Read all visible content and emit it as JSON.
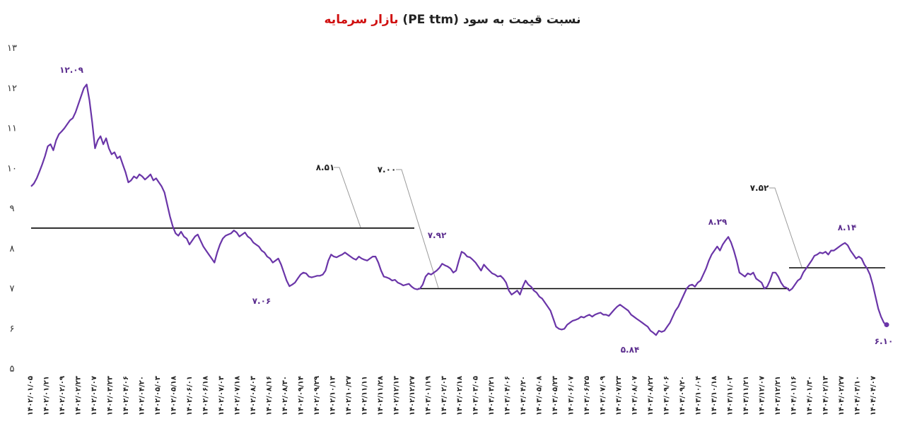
{
  "title": {
    "main": "نسبت قیمت به سود (PE ttm)",
    "highlight": "بازار سرمایه"
  },
  "colors": {
    "line": "#6a35a8",
    "label": "#5b2d8e",
    "level_line": "#000000",
    "leader": "#9a9a9a",
    "highlight": "#d01010"
  },
  "chart_data": {
    "type": "line",
    "ylim": [
      5,
      13
    ],
    "y_ticks": [
      "۵",
      "۶",
      "۷",
      "۸",
      "۹",
      "۱۰",
      "۱۱",
      "۱۲",
      "۱۳"
    ],
    "x_tick_labels": [
      "۱۴۰۲/۰۱/۰۵",
      "۱۴۰۲/۰۱/۲۱",
      "۱۴۰۲/۰۲/۰۹",
      "۱۴۰۲/۰۲/۲۳",
      "۱۴۰۲/۰۳/۰۷",
      "۱۴۰۲/۰۳/۲۳",
      "۱۴۰۲/۰۴/۰۶",
      "۱۴۰۲/۰۴/۲۰",
      "۱۴۰۲/۰۵/۰۳",
      "۱۴۰۲/۰۵/۱۸",
      "۱۴۰۲/۰۶/۰۱",
      "۱۴۰۲/۰۶/۱۸",
      "۱۴۰۲/۰۷/۰۳",
      "۱۴۰۲/۰۷/۱۸",
      "۱۴۰۲/۰۸/۰۳",
      "۱۴۰۲/۰۸/۱۶",
      "۱۴۰۲/۰۸/۳۰",
      "۱۴۰۲/۰۹/۱۴",
      "۱۴۰۲/۰۹/۲۹",
      "۱۴۰۲/۱۰/۱۳",
      "۱۴۰۲/۱۰/۲۷",
      "۱۴۰۲/۱۱/۱۱",
      "۱۴۰۲/۱۱/۲۸",
      "۱۴۰۲/۱۲/۱۳",
      "۱۴۰۲/۱۲/۲۷",
      "۱۴۰۳/۰۱/۱۹",
      "۱۴۰۳/۰۲/۰۳",
      "۱۴۰۳/۰۲/۱۸",
      "۱۴۰۳/۰۳/۰۵",
      "۱۴۰۳/۰۳/۲۱",
      "۱۴۰۳/۰۴/۰۶",
      "۱۴۰۳/۰۴/۲۰",
      "۱۴۰۳/۰۵/۰۸",
      "۱۴۰۳/۰۵/۲۳",
      "۱۴۰۳/۰۶/۰۷",
      "۱۴۰۳/۰۶/۲۵",
      "۱۴۰۳/۰۷/۰۹",
      "۱۴۰۳/۰۷/۲۳",
      "۱۴۰۳/۰۸/۰۷",
      "۱۴۰۳/۰۸/۲۲",
      "۱۴۰۳/۰۹/۰۶",
      "۱۴۰۳/۰۹/۲۰",
      "۱۴۰۳/۱۰/۰۴",
      "۱۴۰۳/۱۰/۱۸",
      "۱۴۰۳/۱۱/۰۳",
      "۱۴۰۳/۱۱/۲۱",
      "۱۴۰۳/۱۲/۰۷",
      "۱۴۰۳/۱۲/۲۱",
      "۱۴۰۴/۰۱/۱۶",
      "۱۴۰۴/۰۱/۳۰",
      "۱۴۰۴/۰۲/۱۳",
      "۱۴۰۴/۰۲/۲۷",
      "۱۴۰۴/۰۳/۱۰",
      "۱۴۰۴/۰۴/۰۷"
    ],
    "series": [
      {
        "name": "",
        "values": [
          9.55,
          9.62,
          9.75,
          9.92,
          10.1,
          10.3,
          10.55,
          10.6,
          10.45,
          10.7,
          10.85,
          10.92,
          11.0,
          11.1,
          11.2,
          11.25,
          11.4,
          11.6,
          11.8,
          12.0,
          12.09,
          11.7,
          11.15,
          10.5,
          10.7,
          10.8,
          10.6,
          10.75,
          10.5,
          10.35,
          10.4,
          10.25,
          10.3,
          10.1,
          9.9,
          9.65,
          9.7,
          9.8,
          9.75,
          9.85,
          9.8,
          9.72,
          9.78,
          9.85,
          9.7,
          9.75,
          9.65,
          9.55,
          9.4,
          9.1,
          8.8,
          8.55,
          8.38,
          8.32,
          8.42,
          8.3,
          8.25,
          8.1,
          8.2,
          8.3,
          8.35,
          8.2,
          8.05,
          7.95,
          7.85,
          7.75,
          7.65,
          7.9,
          8.1,
          8.25,
          8.32,
          8.35,
          8.38,
          8.45,
          8.4,
          8.3,
          8.35,
          8.4,
          8.3,
          8.25,
          8.15,
          8.1,
          8.05,
          7.95,
          7.9,
          7.8,
          7.75,
          7.65,
          7.7,
          7.75,
          7.6,
          7.4,
          7.2,
          7.06,
          7.1,
          7.15,
          7.25,
          7.35,
          7.4,
          7.38,
          7.3,
          7.28,
          7.3,
          7.32,
          7.32,
          7.35,
          7.45,
          7.7,
          7.85,
          7.8,
          7.78,
          7.82,
          7.85,
          7.9,
          7.85,
          7.8,
          7.75,
          7.72,
          7.8,
          7.75,
          7.72,
          7.7,
          7.75,
          7.8,
          7.8,
          7.65,
          7.45,
          7.3,
          7.28,
          7.25,
          7.2,
          7.22,
          7.15,
          7.12,
          7.08,
          7.1,
          7.12,
          7.05,
          7.0,
          6.98,
          7.0,
          7.1,
          7.3,
          7.38,
          7.35,
          7.4,
          7.45,
          7.52,
          7.62,
          7.58,
          7.55,
          7.5,
          7.4,
          7.45,
          7.7,
          7.92,
          7.88,
          7.8,
          7.78,
          7.72,
          7.65,
          7.55,
          7.45,
          7.6,
          7.52,
          7.45,
          7.38,
          7.35,
          7.3,
          7.32,
          7.25,
          7.15,
          6.95,
          6.85,
          6.9,
          6.95,
          6.85,
          7.05,
          7.2,
          7.1,
          7.05,
          6.95,
          6.9,
          6.8,
          6.75,
          6.65,
          6.55,
          6.45,
          6.25,
          6.05,
          6.0,
          5.98,
          6.0,
          6.1,
          6.15,
          6.2,
          6.22,
          6.25,
          6.3,
          6.28,
          6.32,
          6.35,
          6.3,
          6.35,
          6.38,
          6.4,
          6.35,
          6.35,
          6.32,
          6.4,
          6.48,
          6.55,
          6.6,
          6.55,
          6.5,
          6.45,
          6.35,
          6.3,
          6.25,
          6.2,
          6.15,
          6.1,
          6.05,
          5.95,
          5.9,
          5.84,
          5.95,
          5.92,
          5.95,
          6.05,
          6.15,
          6.3,
          6.45,
          6.55,
          6.7,
          6.85,
          7.0,
          7.08,
          7.1,
          7.05,
          7.15,
          7.2,
          7.35,
          7.5,
          7.7,
          7.85,
          7.95,
          8.05,
          7.95,
          8.1,
          8.2,
          8.29,
          8.15,
          7.95,
          7.7,
          7.4,
          7.35,
          7.3,
          7.38,
          7.35,
          7.4,
          7.25,
          7.2,
          7.15,
          7.0,
          7.05,
          7.2,
          7.4,
          7.4,
          7.3,
          7.15,
          7.05,
          7.02,
          6.95,
          7.0,
          7.1,
          7.2,
          7.25,
          7.4,
          7.5,
          7.6,
          7.7,
          7.82,
          7.85,
          7.9,
          7.88,
          7.92,
          7.85,
          7.95,
          7.95,
          8.0,
          8.05,
          8.1,
          8.14,
          8.08,
          7.95,
          7.85,
          7.75,
          7.8,
          7.75,
          7.6,
          7.5,
          7.35,
          7.1,
          6.8,
          6.5,
          6.3,
          6.15,
          6.1
        ]
      }
    ],
    "reference_lines": [
      {
        "value": 8.51,
        "label": "۸.۵۱"
      },
      {
        "value": 7.0,
        "label": "۷.۰۰"
      },
      {
        "value": 7.52,
        "label": "۷.۵۲"
      }
    ],
    "annotations": [
      {
        "label": "۱۲.۰۹"
      },
      {
        "label": "۷.۰۶"
      },
      {
        "label": "۷.۹۲"
      },
      {
        "label": "۵.۸۴"
      },
      {
        "label": "۸.۲۹"
      },
      {
        "label": "۸.۱۴"
      },
      {
        "label": "۶.۱۰"
      }
    ],
    "grid": false,
    "legend": "none"
  }
}
